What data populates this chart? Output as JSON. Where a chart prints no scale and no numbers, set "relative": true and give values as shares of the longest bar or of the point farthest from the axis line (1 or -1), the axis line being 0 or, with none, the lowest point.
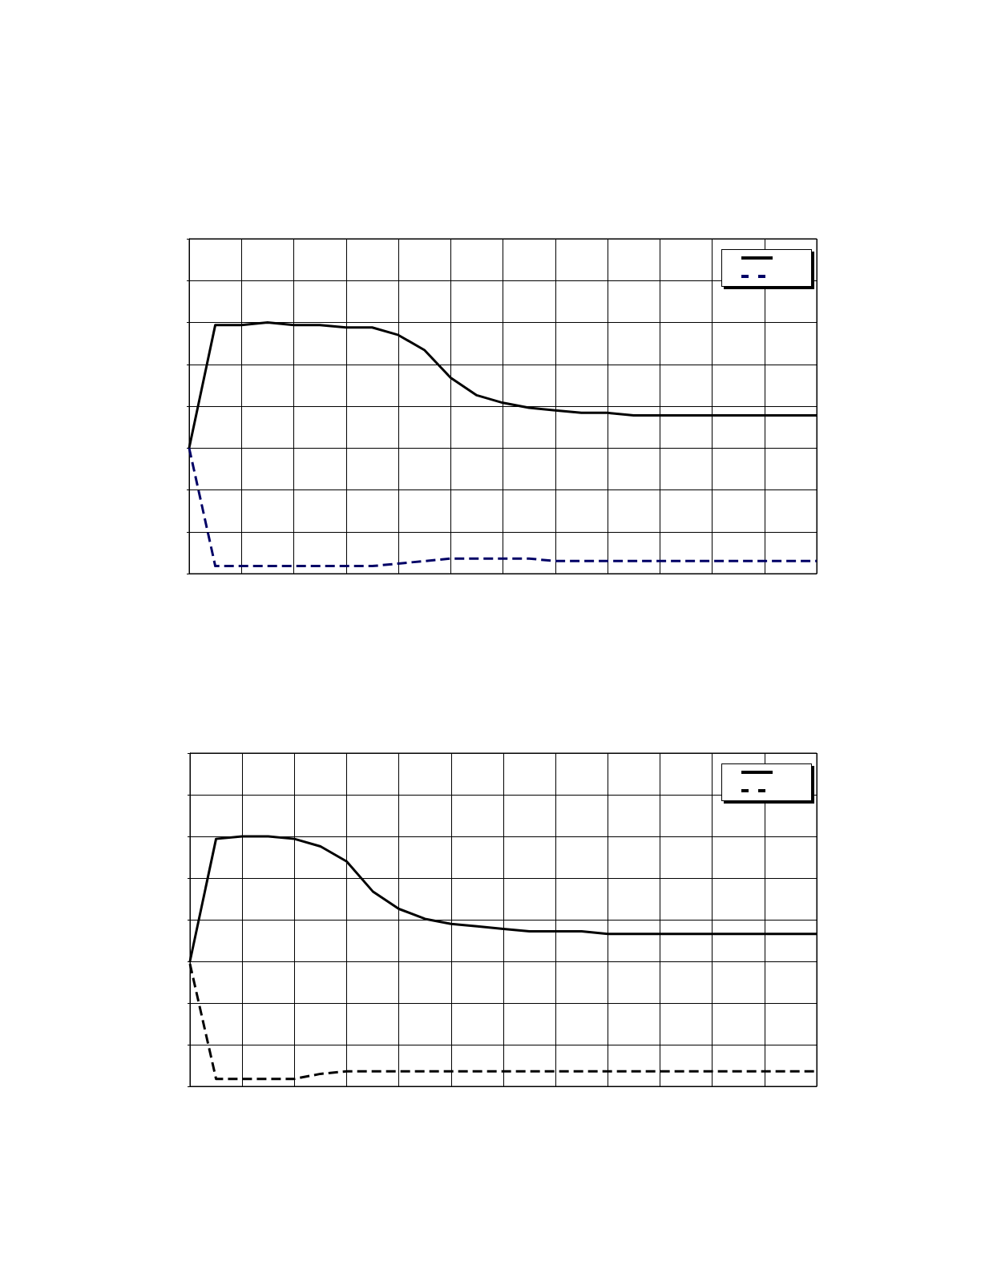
{
  "chart_data": [
    {
      "type": "line",
      "relative": true,
      "grid": true,
      "categories": [
        null,
        null,
        null,
        null,
        null,
        null,
        null,
        null,
        null,
        null,
        null,
        null,
        null,
        null,
        null,
        null,
        null,
        null,
        null,
        null,
        null,
        null,
        null,
        null,
        null
      ],
      "series": [
        {
          "color": "#000000",
          "line_style": "solid",
          "values": [
            0.5,
            0.99,
            0.99,
            1,
            0.99,
            0.99,
            0.98,
            0.98,
            0.95,
            0.89,
            0.78,
            0.71,
            0.68,
            0.66,
            0.65,
            0.64,
            0.64,
            0.63,
            0.63,
            0.63,
            0.63,
            0.63,
            0.63,
            0.63,
            0.63
          ]
        },
        {
          "color": "#000066",
          "line_style": "dashed",
          "values": [
            0.5,
            0.03,
            0.03,
            0.03,
            0.03,
            0.03,
            0.03,
            0.03,
            0.04,
            0.05,
            0.06,
            0.06,
            0.06,
            0.06,
            0.05,
            0.05,
            0.05,
            0.05,
            0.05,
            0.05,
            0.05,
            0.05,
            0.05,
            0.05,
            0.05
          ]
        }
      ]
    },
    {
      "type": "line",
      "relative": true,
      "grid": true,
      "categories": [
        null,
        null,
        null,
        null,
        null,
        null,
        null,
        null,
        null,
        null,
        null,
        null,
        null,
        null,
        null,
        null,
        null,
        null,
        null,
        null,
        null,
        null,
        null,
        null,
        null
      ],
      "series": [
        {
          "color": "#000000",
          "line_style": "solid",
          "values": [
            0.5,
            0.99,
            1,
            1,
            0.99,
            0.96,
            0.9,
            0.78,
            0.71,
            0.67,
            0.65,
            0.64,
            0.63,
            0.62,
            0.62,
            0.62,
            0.61,
            0.61,
            0.61,
            0.61,
            0.61,
            0.61,
            0.61,
            0.61,
            0.61
          ]
        },
        {
          "color": "#000000",
          "line_style": "dashed",
          "values": [
            0.49,
            0.03,
            0.03,
            0.03,
            0.03,
            0.05,
            0.06,
            0.06,
            0.06,
            0.06,
            0.06,
            0.06,
            0.06,
            0.06,
            0.06,
            0.06,
            0.06,
            0.06,
            0.06,
            0.06,
            0.06,
            0.06,
            0.06,
            0.06,
            0.06
          ]
        }
      ]
    }
  ]
}
